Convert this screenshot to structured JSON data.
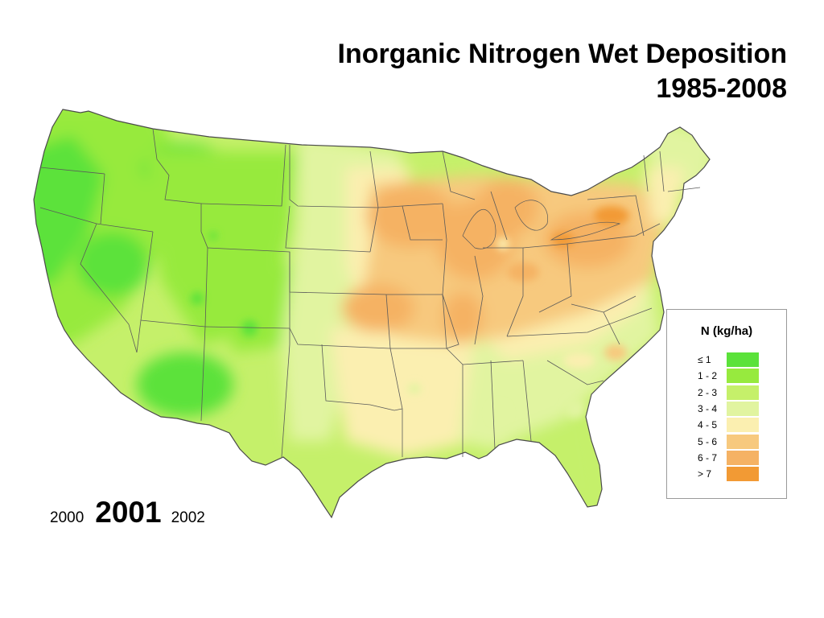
{
  "title": {
    "line1": "Inorganic Nitrogen Wet Deposition",
    "line2": "1985-2008"
  },
  "legend": {
    "title": "N  (kg/ha)",
    "items": [
      {
        "label": "≤ 1",
        "color": "#5be23a"
      },
      {
        "label": "1 - 2",
        "color": "#97ea3e"
      },
      {
        "label": "2 - 3",
        "color": "#c5f06a"
      },
      {
        "label": "3 - 4",
        "color": "#e1f4a0"
      },
      {
        "label": "4 - 5",
        "color": "#fbefb0"
      },
      {
        "label": "5 - 6",
        "color": "#f7c97e"
      },
      {
        "label": "6 - 7",
        "color": "#f5b264"
      },
      {
        "label": "> 7",
        "color": "#f29a34"
      }
    ]
  },
  "years": {
    "previous": "2000",
    "current": "2001",
    "next": "2002"
  }
}
